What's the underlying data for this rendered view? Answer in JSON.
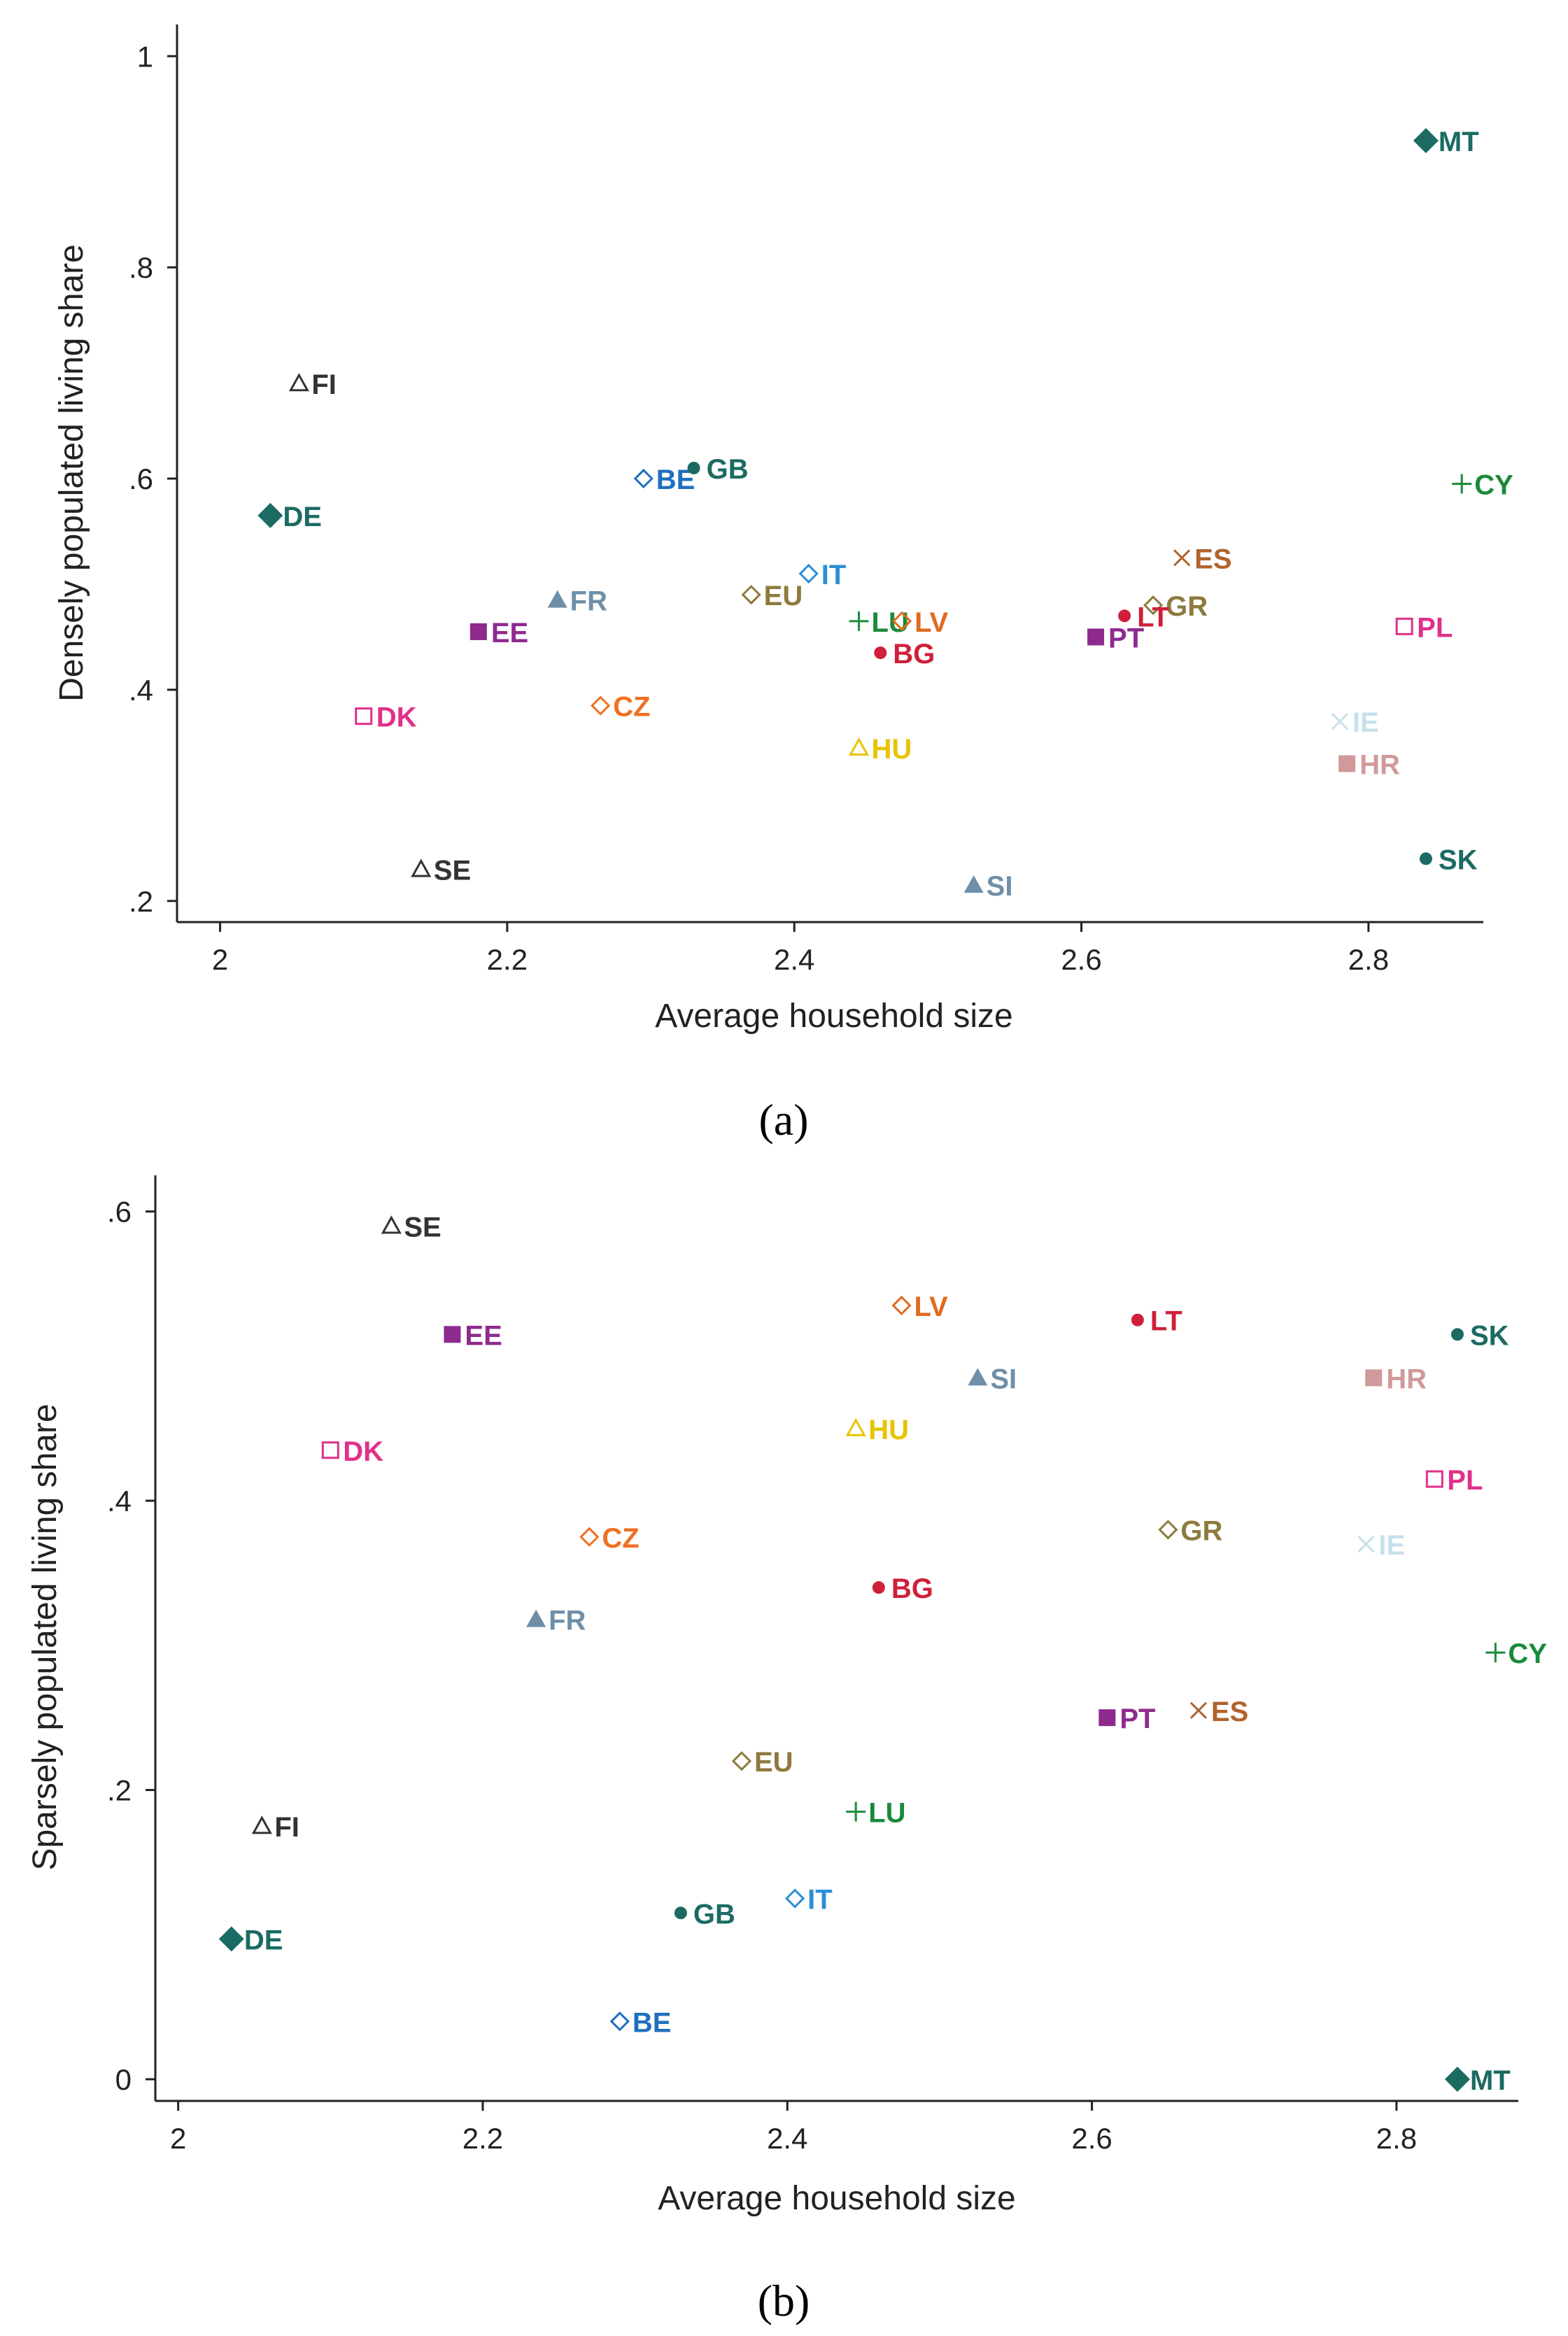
{
  "chart_data": [
    {
      "type": "scatter",
      "caption": "(a)",
      "xlabel": "Average household size",
      "ylabel": "Densely populated living share",
      "xlim": [
        1.97,
        2.88
      ],
      "ylim": [
        0.18,
        1.03
      ],
      "xticks": [
        2,
        2.2,
        2.4,
        2.6,
        2.8
      ],
      "xtick_labels": [
        "2",
        "2.2",
        "2.4",
        "2.6",
        "2.8"
      ],
      "yticks": [
        0.2,
        0.4,
        0.6,
        0.8,
        1
      ],
      "ytick_labels": [
        ".2",
        ".4",
        ".6",
        ".8",
        "1"
      ],
      "grid": false,
      "points": [
        {
          "label": "FI",
          "x": 2.055,
          "y": 0.69,
          "marker": "triangle-open",
          "color": "#333333"
        },
        {
          "label": "DE",
          "x": 2.035,
          "y": 0.565,
          "marker": "diamond-filled",
          "color": "#1b6b63"
        },
        {
          "label": "BE",
          "x": 2.295,
          "y": 0.6,
          "marker": "diamond-open",
          "color": "#1f6fbf"
        },
        {
          "label": "GB",
          "x": 2.33,
          "y": 0.61,
          "marker": "dot",
          "color": "#1b6b63"
        },
        {
          "label": "FR",
          "x": 2.235,
          "y": 0.485,
          "marker": "triangle-filled",
          "color": "#6f8fa8"
        },
        {
          "label": "EE",
          "x": 2.18,
          "y": 0.455,
          "marker": "square-filled",
          "color": "#8e2a8e"
        },
        {
          "label": "EU",
          "x": 2.37,
          "y": 0.49,
          "marker": "diamond-open",
          "color": "#8d7a3e"
        },
        {
          "label": "IT",
          "x": 2.41,
          "y": 0.51,
          "marker": "diamond-open",
          "color": "#2b8fd6"
        },
        {
          "label": "LU",
          "x": 2.445,
          "y": 0.465,
          "marker": "plus",
          "color": "#1a8a3a"
        },
        {
          "label": "LV",
          "x": 2.475,
          "y": 0.465,
          "marker": "diamond-open",
          "color": "#e06a1f"
        },
        {
          "label": "BG",
          "x": 2.46,
          "y": 0.435,
          "marker": "dot",
          "color": "#d01f3a"
        },
        {
          "label": "DK",
          "x": 2.1,
          "y": 0.375,
          "marker": "square-open",
          "color": "#e0308a"
        },
        {
          "label": "CZ",
          "x": 2.265,
          "y": 0.385,
          "marker": "diamond-open",
          "color": "#f07020"
        },
        {
          "label": "HU",
          "x": 2.445,
          "y": 0.345,
          "marker": "triangle-open",
          "color": "#e8c400"
        },
        {
          "label": "SE",
          "x": 2.14,
          "y": 0.23,
          "marker": "triangle-open",
          "color": "#333333"
        },
        {
          "label": "SI",
          "x": 2.525,
          "y": 0.215,
          "marker": "triangle-filled",
          "color": "#6f8fa8"
        },
        {
          "label": "ES",
          "x": 2.67,
          "y": 0.525,
          "marker": "cross",
          "color": "#b0642e"
        },
        {
          "label": "GR",
          "x": 2.65,
          "y": 0.48,
          "marker": "diamond-open",
          "color": "#8d7a3e"
        },
        {
          "label": "LT",
          "x": 2.63,
          "y": 0.47,
          "marker": "dot",
          "color": "#d01f3a"
        },
        {
          "label": "PT",
          "x": 2.61,
          "y": 0.45,
          "marker": "square-filled",
          "color": "#8e2a8e"
        },
        {
          "label": "IE",
          "x": 2.78,
          "y": 0.37,
          "marker": "cross",
          "color": "#c8e0ec"
        },
        {
          "label": "HR",
          "x": 2.785,
          "y": 0.33,
          "marker": "square-filled",
          "color": "#d09a9a"
        },
        {
          "label": "PL",
          "x": 2.825,
          "y": 0.46,
          "marker": "square-open",
          "color": "#e0308a"
        },
        {
          "label": "CY",
          "x": 2.865,
          "y": 0.595,
          "marker": "plus",
          "color": "#1a8a3a"
        },
        {
          "label": "MT",
          "x": 2.84,
          "y": 0.92,
          "marker": "diamond-filled",
          "color": "#1b6b63"
        },
        {
          "label": "SK",
          "x": 2.84,
          "y": 0.24,
          "marker": "dot",
          "color": "#1b6b63"
        }
      ]
    },
    {
      "type": "scatter",
      "caption": "(b)",
      "xlabel": "Average household size",
      "ylabel": "Sparsely populated living share",
      "xlim": [
        1.985,
        2.88
      ],
      "ylim": [
        -0.015,
        0.625
      ],
      "xticks": [
        2,
        2.2,
        2.4,
        2.6,
        2.8
      ],
      "xtick_labels": [
        "2",
        "2.2",
        "2.4",
        "2.6",
        "2.8"
      ],
      "yticks": [
        0,
        0.2,
        0.4,
        0.6
      ],
      "ytick_labels": [
        "0",
        ".2",
        ".4",
        ".6"
      ],
      "grid": false,
      "points": [
        {
          "label": "SE",
          "x": 2.14,
          "y": 0.59,
          "marker": "triangle-open",
          "color": "#333333"
        },
        {
          "label": "EE",
          "x": 2.18,
          "y": 0.515,
          "marker": "square-filled",
          "color": "#8e2a8e"
        },
        {
          "label": "DK",
          "x": 2.1,
          "y": 0.435,
          "marker": "square-open",
          "color": "#e0308a"
        },
        {
          "label": "CZ",
          "x": 2.27,
          "y": 0.375,
          "marker": "diamond-open",
          "color": "#f07020"
        },
        {
          "label": "FR",
          "x": 2.235,
          "y": 0.318,
          "marker": "triangle-filled",
          "color": "#6f8fa8"
        },
        {
          "label": "LV",
          "x": 2.475,
          "y": 0.535,
          "marker": "diamond-open",
          "color": "#e06a1f"
        },
        {
          "label": "LT",
          "x": 2.63,
          "y": 0.525,
          "marker": "dot",
          "color": "#d01f3a"
        },
        {
          "label": "SI",
          "x": 2.525,
          "y": 0.485,
          "marker": "triangle-filled",
          "color": "#6f8fa8"
        },
        {
          "label": "HU",
          "x": 2.445,
          "y": 0.45,
          "marker": "triangle-open",
          "color": "#e8c400"
        },
        {
          "label": "BG",
          "x": 2.46,
          "y": 0.34,
          "marker": "dot",
          "color": "#d01f3a"
        },
        {
          "label": "EU",
          "x": 2.37,
          "y": 0.22,
          "marker": "diamond-open",
          "color": "#8d7a3e"
        },
        {
          "label": "LU",
          "x": 2.445,
          "y": 0.185,
          "marker": "plus",
          "color": "#1a8a3a"
        },
        {
          "label": "FI",
          "x": 2.055,
          "y": 0.175,
          "marker": "triangle-open",
          "color": "#333333"
        },
        {
          "label": "IT",
          "x": 2.405,
          "y": 0.125,
          "marker": "diamond-open",
          "color": "#2b8fd6"
        },
        {
          "label": "GB",
          "x": 2.33,
          "y": 0.115,
          "marker": "dot",
          "color": "#1b6b63"
        },
        {
          "label": "DE",
          "x": 2.035,
          "y": 0.097,
          "marker": "diamond-filled",
          "color": "#1b6b63"
        },
        {
          "label": "BE",
          "x": 2.29,
          "y": 0.04,
          "marker": "diamond-open",
          "color": "#1f6fbf"
        },
        {
          "label": "SK",
          "x": 2.84,
          "y": 0.515,
          "marker": "dot",
          "color": "#1b6b63"
        },
        {
          "label": "HR",
          "x": 2.785,
          "y": 0.485,
          "marker": "square-filled",
          "color": "#d09a9a"
        },
        {
          "label": "PL",
          "x": 2.825,
          "y": 0.415,
          "marker": "square-open",
          "color": "#e0308a"
        },
        {
          "label": "GR",
          "x": 2.65,
          "y": 0.38,
          "marker": "diamond-open",
          "color": "#8d7a3e"
        },
        {
          "label": "IE",
          "x": 2.78,
          "y": 0.37,
          "marker": "cross",
          "color": "#c8e0ec"
        },
        {
          "label": "CY",
          "x": 2.865,
          "y": 0.295,
          "marker": "plus",
          "color": "#1a8a3a"
        },
        {
          "label": "ES",
          "x": 2.67,
          "y": 0.255,
          "marker": "cross",
          "color": "#b0642e"
        },
        {
          "label": "PT",
          "x": 2.61,
          "y": 0.25,
          "marker": "square-filled",
          "color": "#8e2a8e"
        },
        {
          "label": "MT",
          "x": 2.84,
          "y": 0.0,
          "marker": "diamond-filled",
          "color": "#1b6b63"
        }
      ]
    }
  ]
}
